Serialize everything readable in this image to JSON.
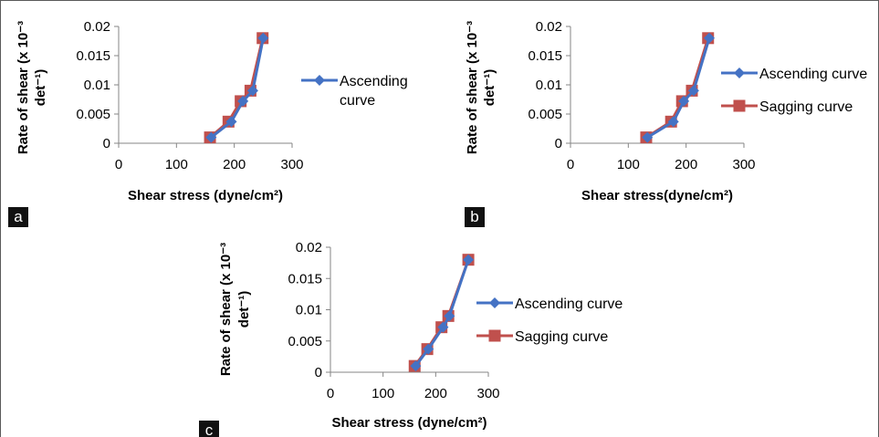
{
  "colors": {
    "ascending": "#4472C4",
    "sagging": "#C0504D",
    "axis": "#868686",
    "badge_bg": "#111111",
    "badge_text": "#ffffff"
  },
  "chart_data": [
    {
      "type": "line",
      "panel_label": "a",
      "title": "",
      "xlabel": "Shear stress (dyne/cm²)",
      "ylabel_line1": "Rate of shear (x 10⁻³",
      "ylabel_line2": "det⁻¹)",
      "xlim": [
        0,
        300
      ],
      "ylim": [
        0,
        0.02
      ],
      "xticks": [
        "0",
        "100",
        "200",
        "300"
      ],
      "yticks": [
        "0",
        "0.005",
        "0.01",
        "0.015",
        "0.02"
      ],
      "legend_position": "right",
      "series": [
        {
          "name": "Ascending curve",
          "marker": "diamond",
          "color_key": "ascending",
          "legend_lines": [
            "Ascending",
            "curve"
          ],
          "x": [
            160,
            195,
            215,
            232,
            250
          ],
          "y": [
            0.001,
            0.0037,
            0.0072,
            0.009,
            0.018
          ]
        },
        {
          "name": "",
          "marker": "square",
          "color_key": "sagging",
          "legend_lines": [],
          "x": [
            158,
            190,
            211,
            228,
            249
          ],
          "y": [
            0.001,
            0.0037,
            0.0072,
            0.009,
            0.018
          ]
        }
      ]
    },
    {
      "type": "line",
      "panel_label": "b",
      "title": "",
      "xlabel": "Shear stress(dyne/cm²)",
      "ylabel_line1": "Rate of shear (x 10⁻³",
      "ylabel_line2": "det⁻¹)",
      "xlim": [
        0,
        300
      ],
      "ylim": [
        0,
        0.02
      ],
      "xticks": [
        "0",
        "100",
        "200",
        "300"
      ],
      "yticks": [
        "0",
        "0.005",
        "0.01",
        "0.015",
        "0.02"
      ],
      "legend_position": "right",
      "series": [
        {
          "name": "Ascending curve",
          "marker": "diamond",
          "color_key": "ascending",
          "legend_lines": [
            "Ascending curve"
          ],
          "x": [
            133,
            178,
            196,
            213,
            240
          ],
          "y": [
            0.001,
            0.0037,
            0.0072,
            0.009,
            0.018
          ]
        },
        {
          "name": "Sagging curve",
          "marker": "square",
          "color_key": "sagging",
          "legend_lines": [
            "Sagging curve"
          ],
          "x": [
            131,
            174,
            193,
            210,
            238
          ],
          "y": [
            0.001,
            0.0037,
            0.0072,
            0.009,
            0.018
          ]
        }
      ]
    },
    {
      "type": "line",
      "panel_label": "c",
      "title": "",
      "xlabel": "Shear stress (dyne/cm²)",
      "ylabel_line1": "Rate of shear (x 10⁻³",
      "ylabel_line2": "det⁻¹)",
      "xlim": [
        0,
        300
      ],
      "ylim": [
        0,
        0.02
      ],
      "xticks": [
        "0",
        "100",
        "200",
        "300"
      ],
      "yticks": [
        "0",
        "0.005",
        "0.01",
        "0.015",
        "0.02"
      ],
      "legend_position": "right",
      "series": [
        {
          "name": "Ascending curve",
          "marker": "diamond",
          "color_key": "ascending",
          "legend_lines": [
            "Ascending curve"
          ],
          "x": [
            162,
            186,
            214,
            226,
            262
          ],
          "y": [
            0.001,
            0.0037,
            0.0072,
            0.009,
            0.018
          ]
        },
        {
          "name": "Sagging curve",
          "marker": "square",
          "color_key": "sagging",
          "legend_lines": [
            "Sagging curve"
          ],
          "x": [
            160,
            184,
            211,
            224,
            262
          ],
          "y": [
            0.001,
            0.0037,
            0.0072,
            0.009,
            0.018
          ]
        }
      ]
    }
  ]
}
